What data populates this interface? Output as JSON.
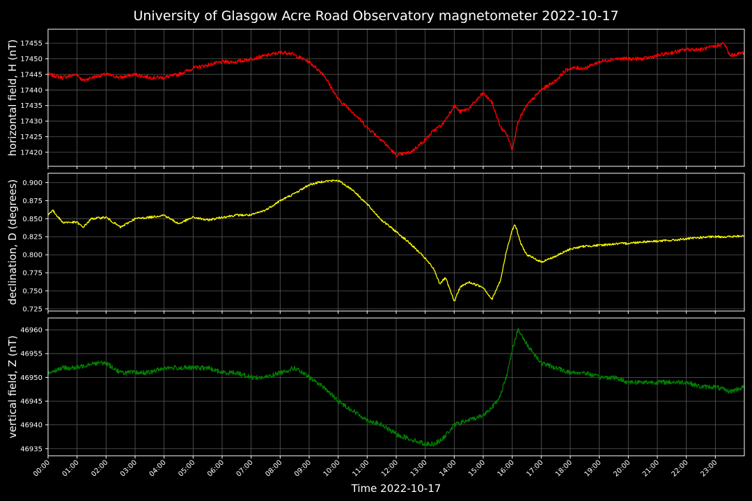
{
  "chart_data": {
    "type": "line",
    "title": "University of Glasgow Acre Road Observatory magnetometer 2022-10-17",
    "xlabel": "Time 2022-10-17",
    "x_ticks": [
      "00:00",
      "01:00",
      "02:00",
      "03:00",
      "04:00",
      "05:00",
      "06:00",
      "07:00",
      "08:00",
      "09:00",
      "10:00",
      "11:00",
      "12:00",
      "13:00",
      "14:00",
      "15:00",
      "16:00",
      "17:00",
      "18:00",
      "19:00",
      "20:00",
      "21:00",
      "22:00",
      "23:00"
    ],
    "xlim": [
      0,
      24
    ],
    "grid": true,
    "panels": [
      {
        "ylabel": "horizontal field, H (nT)",
        "color": "#ff0000",
        "ylim": [
          17415.5,
          17459.5
        ],
        "yticks": [
          17420,
          17425,
          17430,
          17435,
          17440,
          17445,
          17450,
          17455
        ],
        "ytick_labels": [
          "17420",
          "17425",
          "17430",
          "17435",
          "17440",
          "17445",
          "17450",
          "17455"
        ],
        "noise": 0.6,
        "series": [
          {
            "x": [
              0,
              0.5,
              1,
              1.2,
              1.5,
              2,
              2.5,
              3,
              3.5,
              4,
              4.5,
              5,
              5.5,
              6,
              6.5,
              7,
              7.5,
              8,
              8.3,
              9,
              9.5,
              10,
              10.5,
              11,
              11.5,
              12,
              12.5,
              13,
              13.3,
              13.6,
              14,
              14.2,
              14.5,
              15,
              15.3,
              15.6,
              15.8,
              16,
              16.2,
              16.5,
              17,
              17.5,
              17.8,
              18,
              18.5,
              19,
              19.5,
              20,
              20.5,
              21,
              21.5,
              22,
              22.5,
              23,
              23.3,
              23.5,
              24
            ],
            "y": [
              17445,
              17444,
              17445,
              17443,
              17444,
              17445,
              17444,
              17445,
              17444,
              17444,
              17445,
              17447,
              17448,
              17449,
              17449,
              17450,
              17451,
              17452,
              17452,
              17449,
              17445,
              17437,
              17433,
              17428,
              17424,
              17419,
              17420,
              17424,
              17427,
              17429,
              17435,
              17433,
              17434,
              17439,
              17436,
              17428,
              17426,
              17421,
              17430,
              17435,
              17440,
              17443,
              17446,
              17447,
              17447,
              17449,
              17450,
              17450,
              17450,
              17451,
              17452,
              17453,
              17453,
              17454,
              17455,
              17451,
              17452
            ]
          }
        ]
      },
      {
        "ylabel": "declination, D (degrees)",
        "color": "#ffff00",
        "ylim": [
          0.722,
          0.913
        ],
        "yticks": [
          0.725,
          0.75,
          0.775,
          0.8,
          0.825,
          0.85,
          0.875,
          0.9
        ],
        "ytick_labels": [
          "0.725",
          "0.750",
          "0.775",
          "0.800",
          "0.825",
          "0.850",
          "0.875",
          "0.900"
        ],
        "noise": 0.0015,
        "series": [
          {
            "x": [
              0,
              0.15,
              0.5,
              1,
              1.2,
              1.5,
              2,
              2.5,
              3,
              3.5,
              4,
              4.5,
              5,
              5.5,
              6,
              6.5,
              7,
              7.5,
              8,
              8.5,
              9,
              9.5,
              10,
              10.5,
              11,
              11.5,
              12,
              12.5,
              13,
              13.3,
              13.5,
              13.7,
              14,
              14.2,
              14.5,
              15,
              15.3,
              15.6,
              15.8,
              16,
              16.1,
              16.3,
              16.5,
              17,
              17.5,
              18,
              18.5,
              19,
              19.5,
              20,
              20.5,
              21,
              21.5,
              22,
              22.5,
              23,
              23.5,
              24
            ],
            "y": [
              0.855,
              0.862,
              0.845,
              0.845,
              0.838,
              0.85,
              0.852,
              0.838,
              0.85,
              0.852,
              0.855,
              0.843,
              0.852,
              0.848,
              0.852,
              0.855,
              0.855,
              0.862,
              0.875,
              0.885,
              0.897,
              0.902,
              0.903,
              0.89,
              0.87,
              0.848,
              0.832,
              0.815,
              0.795,
              0.78,
              0.76,
              0.768,
              0.735,
              0.755,
              0.762,
              0.755,
              0.738,
              0.765,
              0.805,
              0.835,
              0.842,
              0.815,
              0.8,
              0.79,
              0.798,
              0.808,
              0.812,
              0.813,
              0.815,
              0.816,
              0.818,
              0.819,
              0.82,
              0.822,
              0.824,
              0.825,
              0.825,
              0.826
            ]
          }
        ]
      },
      {
        "ylabel": "vertical field, Z (nT)",
        "color": "#008000",
        "ylim": [
          46933.5,
          46962.5
        ],
        "yticks": [
          46935,
          46940,
          46945,
          46950,
          46955,
          46960
        ],
        "ytick_labels": [
          "46935",
          "46940",
          "46945",
          "46950",
          "46955",
          "46960"
        ],
        "noise": 0.5,
        "series": [
          {
            "x": [
              0,
              0.5,
              1,
              1.5,
              2,
              2.5,
              3,
              3.5,
              4,
              4.5,
              5,
              5.5,
              6,
              6.5,
              7,
              7.5,
              8,
              8.5,
              9,
              9.5,
              10,
              10.5,
              11,
              11.5,
              12,
              12.5,
              13,
              13.3,
              13.6,
              14,
              14.5,
              15,
              15.5,
              15.8,
              16,
              16.2,
              16.5,
              17,
              17.5,
              18,
              18.5,
              19,
              19.5,
              20,
              20.5,
              21,
              21.5,
              22,
              22.5,
              23,
              23.5,
              24
            ],
            "y": [
              46951,
              46952,
              46952,
              46953,
              46953,
              46951,
              46951,
              46951,
              46952,
              46952,
              46952,
              46952,
              46951,
              46951,
              46950,
              46950,
              46951,
              46952,
              46950,
              46948,
              46945,
              46943,
              46941,
              46940,
              46938,
              46937,
              46936,
              46936,
              46937,
              46940,
              46941,
              46942,
              46945,
              46950,
              46956,
              46960,
              46957,
              46953,
              46952,
              46951,
              46951,
              46950,
              46950,
              46949,
              46949,
              46949,
              46949,
              46949,
              46948,
              46948,
              46947,
              46948
            ]
          }
        ]
      }
    ]
  }
}
